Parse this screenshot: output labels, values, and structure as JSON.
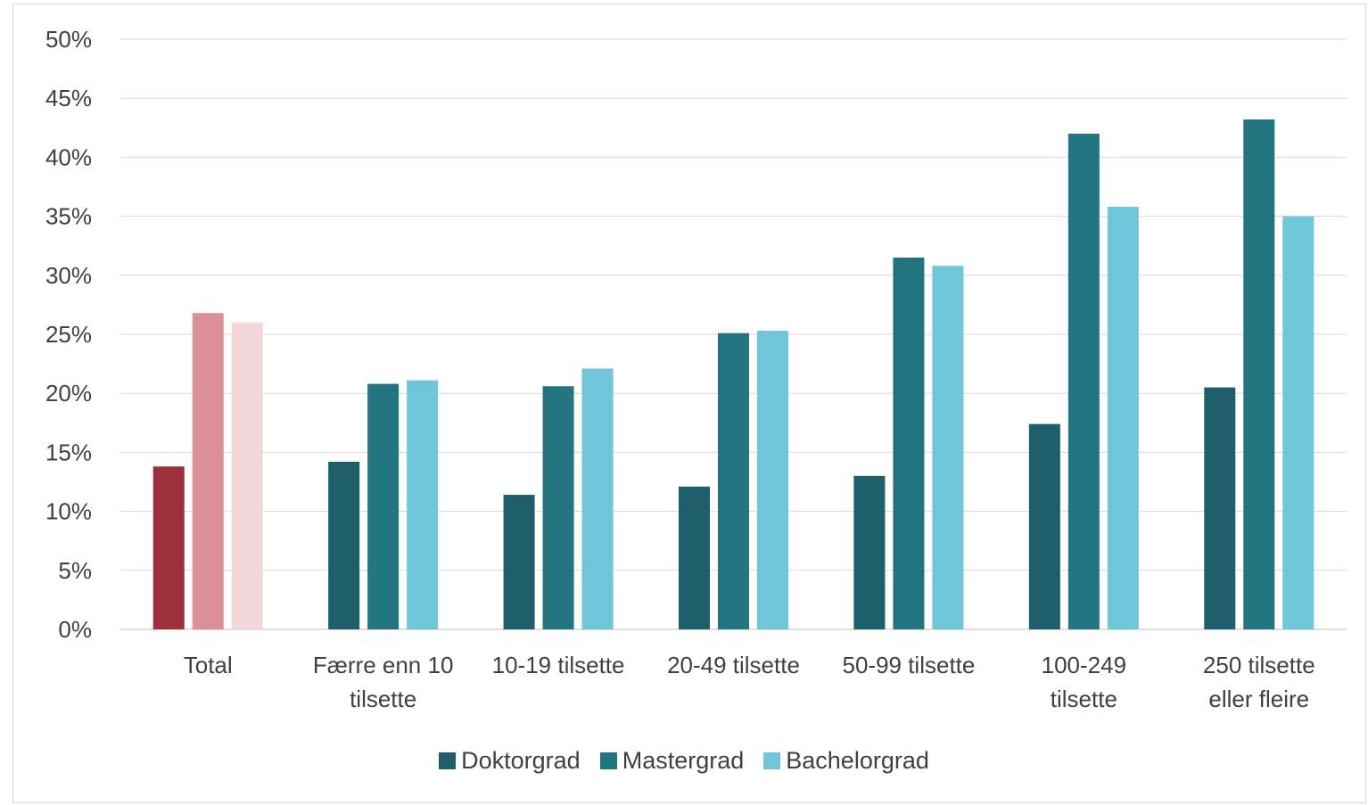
{
  "chart_data": {
    "type": "bar",
    "categories": [
      [
        "Total"
      ],
      [
        "Færre enn 10",
        "tilsette"
      ],
      [
        "10-19 tilsette"
      ],
      [
        "20-49 tilsette"
      ],
      [
        "50-99 tilsette"
      ],
      [
        "100-249",
        "tilsette"
      ],
      [
        "250 tilsette",
        "eller fleire"
      ]
    ],
    "series": [
      {
        "name": "Doktorgrad",
        "color": "#1f5f6b",
        "total_color": "#9c2f3c",
        "values": [
          13.8,
          14.2,
          11.4,
          12.1,
          13.0,
          17.4,
          20.5
        ]
      },
      {
        "name": "Mastergrad",
        "color": "#22747f",
        "total_color": "#dc8f96",
        "values": [
          26.8,
          20.8,
          20.6,
          25.1,
          31.5,
          42.0,
          43.2
        ]
      },
      {
        "name": "Bachelorgrad",
        "color": "#6ec6d8",
        "total_color": "#f3d6da",
        "values": [
          26.0,
          21.1,
          22.1,
          25.3,
          30.8,
          35.8,
          35.0
        ]
      }
    ],
    "ylim": [
      0,
      50
    ],
    "yticks": [
      0,
      5,
      10,
      15,
      20,
      25,
      30,
      35,
      40,
      45,
      50
    ],
    "ytick_suffix": "%",
    "grid": true,
    "legend_position": "bottom",
    "title": "",
    "xlabel": "",
    "ylabel": ""
  }
}
